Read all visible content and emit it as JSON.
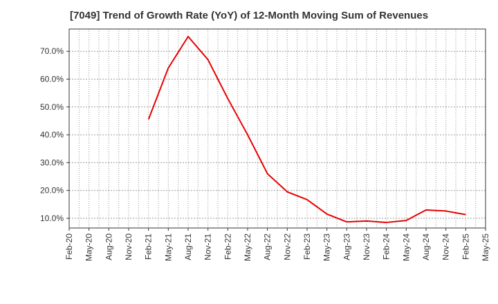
{
  "chart_data": {
    "type": "line",
    "title": "[7049]  Trend of Growth Rate (YoY) of 12-Month Moving Sum of Revenues",
    "xlabel": "",
    "ylabel": "",
    "ylim": [
      6.5,
      78
    ],
    "yticks": [
      10,
      20,
      30,
      40,
      50,
      60,
      70
    ],
    "ytick_labels": [
      "10.0%",
      "20.0%",
      "30.0%",
      "40.0%",
      "50.0%",
      "60.0%",
      "70.0%"
    ],
    "xtick_labels": [
      "Feb-20",
      "May-20",
      "Aug-20",
      "Nov-20",
      "Feb-21",
      "May-21",
      "Aug-21",
      "Nov-21",
      "Feb-22",
      "May-22",
      "Aug-22",
      "Nov-22",
      "Feb-23",
      "May-23",
      "Aug-23",
      "Nov-23",
      "Feb-24",
      "May-24",
      "Aug-24",
      "Nov-24",
      "Feb-25",
      "May-25"
    ],
    "grid": true,
    "series": [
      {
        "color": "#e60000",
        "x": [
          "Feb-21",
          "May-21",
          "Aug-21",
          "Nov-21",
          "Feb-22",
          "May-22",
          "Aug-22",
          "Nov-22",
          "Feb-23",
          "May-23",
          "Aug-23",
          "Nov-23",
          "Feb-24",
          "May-24",
          "Aug-24",
          "Nov-24",
          "Feb-25"
        ],
        "values": [
          45.5,
          64.0,
          75.3,
          67.0,
          53.0,
          40.0,
          26.0,
          19.5,
          16.7,
          11.5,
          8.7,
          9.0,
          8.5,
          9.2,
          13.0,
          12.6,
          11.3
        ]
      }
    ]
  }
}
